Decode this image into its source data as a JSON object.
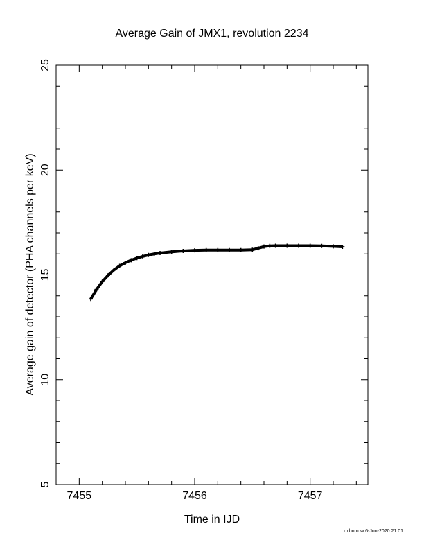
{
  "chart_data": {
    "type": "scatter",
    "title": "Average Gain of JMX1, revolution 2234",
    "xlabel": "Time in IJD",
    "ylabel": "Average gain of detector (PHA channels per keV)",
    "xlim": [
      7454.8,
      7457.5
    ],
    "ylim": [
      5,
      25
    ],
    "xticks": [
      7455,
      7456,
      7457
    ],
    "xtick_labels": [
      "7455",
      "7456",
      "7457"
    ],
    "yticks": [
      5,
      10,
      15,
      20,
      25
    ],
    "ytick_labels": [
      "5",
      "10",
      "15",
      "20",
      "25"
    ],
    "grid": false,
    "marker": "plus",
    "color": "#000000",
    "series": [
      {
        "x": [
          7455.1,
          7455.15,
          7455.2,
          7455.25,
          7455.3,
          7455.35,
          7455.4,
          7455.45,
          7455.5,
          7455.55,
          7455.6,
          7455.65,
          7455.7,
          7455.8,
          7455.9,
          7456.0,
          7456.1,
          7456.2,
          7456.3,
          7456.4,
          7456.5,
          7456.55,
          7456.6,
          7456.65,
          7456.7,
          7456.8,
          7456.9,
          7457.0,
          7457.1,
          7457.2,
          7457.28
        ],
        "y": [
          13.85,
          14.3,
          14.68,
          14.98,
          15.23,
          15.43,
          15.58,
          15.7,
          15.8,
          15.88,
          15.95,
          16.0,
          16.04,
          16.1,
          16.14,
          16.17,
          16.18,
          16.18,
          16.18,
          16.18,
          16.2,
          16.27,
          16.35,
          16.38,
          16.39,
          16.39,
          16.39,
          16.39,
          16.38,
          16.36,
          16.34
        ]
      }
    ]
  },
  "footer": {
    "stamp": "oxborrow  6-Jun-2020 21:01"
  }
}
